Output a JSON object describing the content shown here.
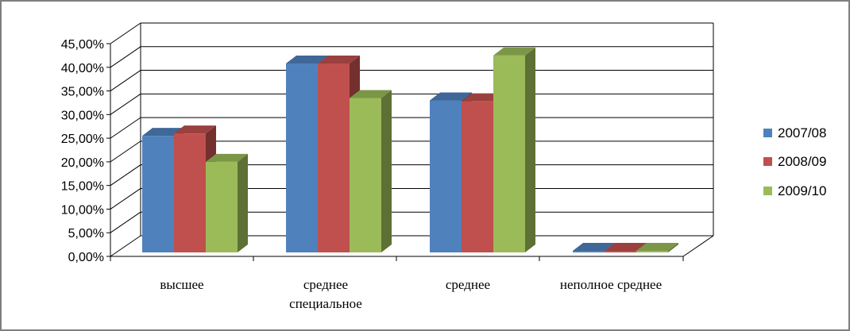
{
  "chart_data": {
    "type": "bar",
    "categories": [
      [
        "высшее"
      ],
      [
        "среднее",
        "специальное"
      ],
      [
        "среднее"
      ],
      [
        "неполное среднее"
      ]
    ],
    "series": [
      {
        "name": "2007/08",
        "values": [
          25.5,
          40.8,
          33.0,
          0.2
        ],
        "color": "#4f81bd"
      },
      {
        "name": "2008/09",
        "values": [
          26.0,
          40.8,
          32.8,
          0.2
        ],
        "color": "#c0504d"
      },
      {
        "name": "2009/10",
        "values": [
          20.0,
          33.5,
          42.5,
          0.2
        ],
        "color": "#9bbb59"
      }
    ],
    "yticks": [
      "0,00%",
      "5,00%",
      "10,00%",
      "15,00%",
      "20,00%",
      "25,00%",
      "30,00%",
      "35,00%",
      "40,00%",
      "45,00%"
    ],
    "ylim": [
      0,
      45
    ],
    "grid": true,
    "legend": "right",
    "style": "3d-clustered-column"
  }
}
